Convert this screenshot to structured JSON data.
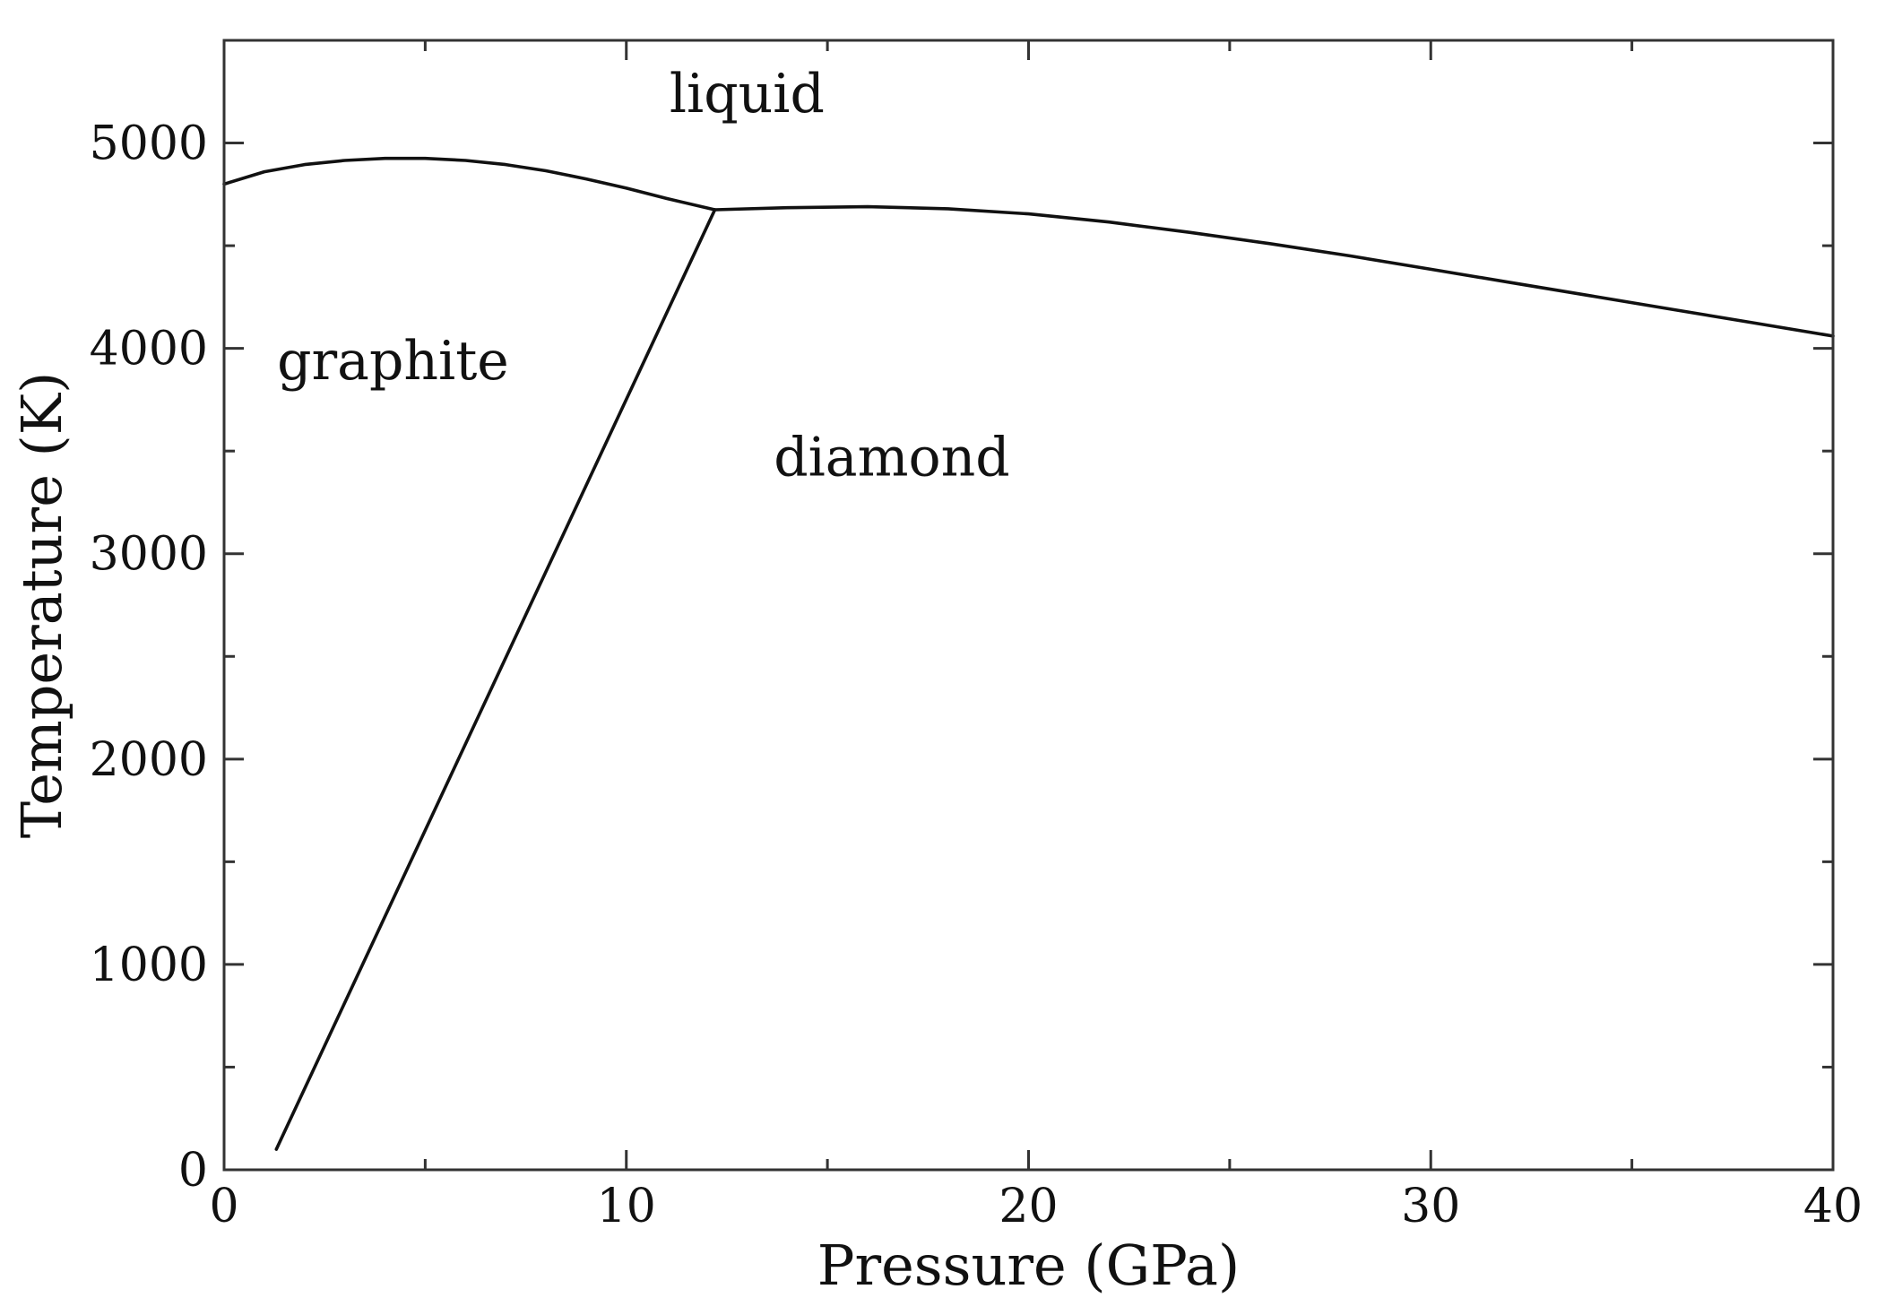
{
  "chart_data": {
    "type": "line",
    "title": "",
    "xlabel": "Pressure (GPa)",
    "ylabel": "Temperature (K)",
    "xlim": [
      0,
      40
    ],
    "ylim": [
      0,
      5500
    ],
    "x_major_ticks": [
      0,
      10,
      20,
      30,
      40
    ],
    "x_minor_ticks": [
      5,
      15,
      25,
      35
    ],
    "y_major_ticks": [
      0,
      1000,
      2000,
      3000,
      4000,
      5000
    ],
    "y_minor_ticks": [
      500,
      1500,
      2500,
      3500,
      4500,
      5500
    ],
    "x_tick_labels": [
      "0",
      "10",
      "20",
      "30",
      "40"
    ],
    "y_tick_labels": [
      "0",
      "1000",
      "2000",
      "3000",
      "4000",
      "5000"
    ],
    "grid": false,
    "legend": "none",
    "line_color": "#111111",
    "series": [
      {
        "points": [
          {
            "x": 0,
            "y": 4800
          },
          {
            "x": 1,
            "y": 4860
          },
          {
            "x": 2,
            "y": 4895
          },
          {
            "x": 3,
            "y": 4915
          },
          {
            "x": 4,
            "y": 4925
          },
          {
            "x": 5,
            "y": 4925
          },
          {
            "x": 6,
            "y": 4915
          },
          {
            "x": 7,
            "y": 4895
          },
          {
            "x": 8,
            "y": 4865
          },
          {
            "x": 9,
            "y": 4825
          },
          {
            "x": 10,
            "y": 4780
          },
          {
            "x": 11,
            "y": 4730
          },
          {
            "x": 12.2,
            "y": 4675
          }
        ]
      },
      {
        "points": [
          {
            "x": 12.2,
            "y": 4675
          },
          {
            "x": 14,
            "y": 4685
          },
          {
            "x": 16,
            "y": 4690
          },
          {
            "x": 18,
            "y": 4680
          },
          {
            "x": 20,
            "y": 4655
          },
          {
            "x": 22,
            "y": 4615
          },
          {
            "x": 24,
            "y": 4565
          },
          {
            "x": 26,
            "y": 4510
          },
          {
            "x": 28,
            "y": 4450
          },
          {
            "x": 30,
            "y": 4385
          },
          {
            "x": 32,
            "y": 4320
          },
          {
            "x": 34,
            "y": 4255
          },
          {
            "x": 36,
            "y": 4190
          },
          {
            "x": 38,
            "y": 4125
          },
          {
            "x": 40,
            "y": 4060
          }
        ]
      },
      {
        "points": [
          {
            "x": 1.3,
            "y": 100
          },
          {
            "x": 12.2,
            "y": 4675
          }
        ]
      }
    ],
    "annotations": [
      {
        "text": "liquid",
        "x": 13,
        "y": 5150
      },
      {
        "text": "graphite",
        "x": 4.2,
        "y": 3850
      },
      {
        "text": "diamond",
        "x": 16.6,
        "y": 3380
      }
    ]
  }
}
